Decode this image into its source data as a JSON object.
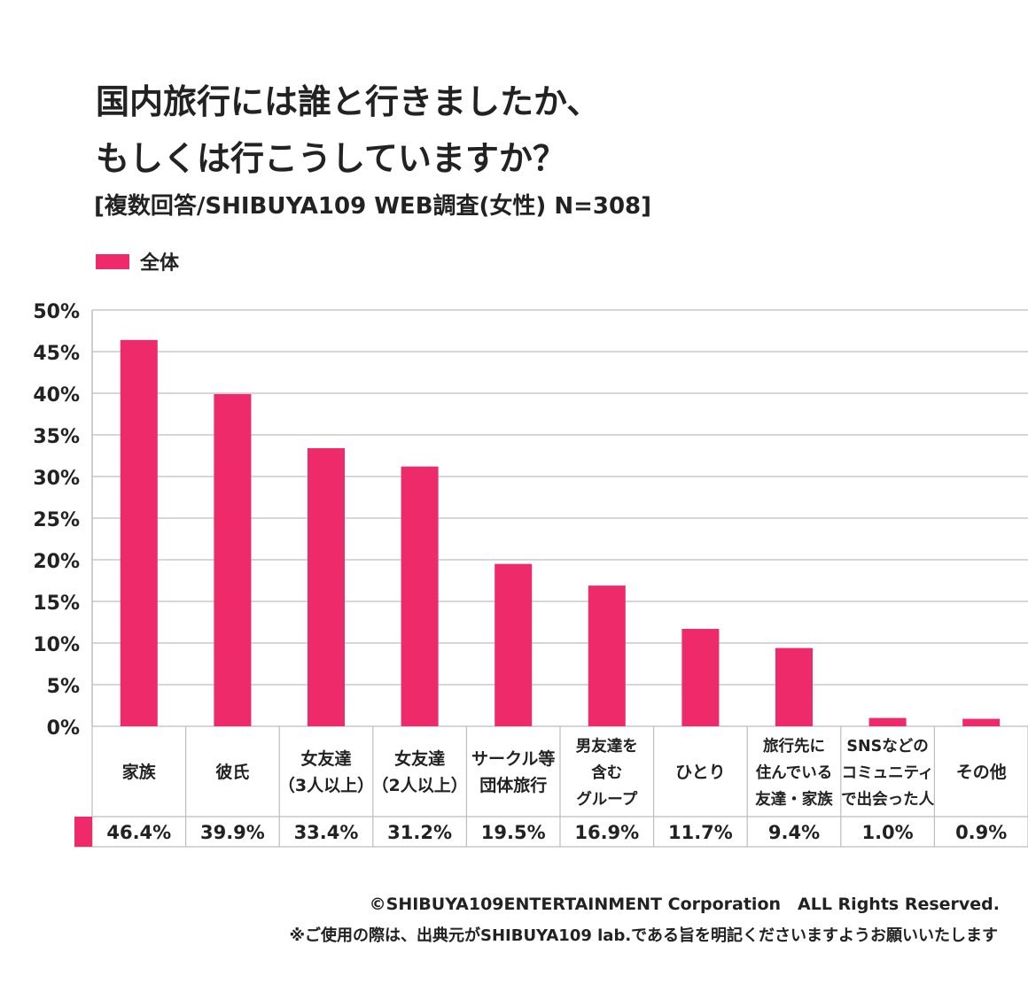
{
  "header": {
    "title_line1": "国内旅行には誰と行きましたか、",
    "title_line2": "もしくは行こうしていますか？",
    "subtitle": "[複数回答/SHIBUYA109 WEB調査(女性) N=308]"
  },
  "colors": {
    "bar": "#ee2a6b",
    "grid": "#c8c8c8",
    "axis": "#bdbdbd",
    "text": "#222222"
  },
  "chart_data": {
    "type": "bar",
    "title": "国内旅行には誰と行きましたか、もしくは行こうしていますか？",
    "legend": [
      "全体"
    ],
    "legend_position": "top-left",
    "ylim": [
      0,
      50
    ],
    "yticks": [
      0,
      5,
      10,
      15,
      20,
      25,
      30,
      35,
      40,
      45,
      50
    ],
    "ytick_labels": [
      "0%",
      "5%",
      "10%",
      "15%",
      "20%",
      "25%",
      "30%",
      "35%",
      "40%",
      "45%",
      "50%"
    ],
    "grid": true,
    "categories": [
      [
        "家族"
      ],
      [
        "彼氏"
      ],
      [
        "女友達",
        "（3人以上）"
      ],
      [
        "女友達",
        "（2人以上）"
      ],
      [
        "サークル等",
        "団体旅行"
      ],
      [
        "男友達を",
        "含む",
        "グループ"
      ],
      [
        "ひとり"
      ],
      [
        "旅行先に",
        "住んでいる",
        "友達・家族"
      ],
      [
        "SNSなどの",
        "コミュニティ",
        "で出会った人"
      ],
      [
        "その他"
      ]
    ],
    "values": [
      46.4,
      39.9,
      33.4,
      31.2,
      19.5,
      16.9,
      11.7,
      9.4,
      1.0,
      0.9
    ],
    "value_labels": [
      "46.4%",
      "39.9%",
      "33.4%",
      "31.2%",
      "19.5%",
      "16.9%",
      "11.7%",
      "9.4%",
      "1.0%",
      "0.9%"
    ]
  },
  "footer": {
    "copyright": "©SHIBUYA109ENTERTAINMENT Corporation　ALL Rights Reserved.",
    "note": "※ご使用の際は、出典元がSHIBUYA109 lab.である旨を明記くださいますようお願いいたします"
  }
}
